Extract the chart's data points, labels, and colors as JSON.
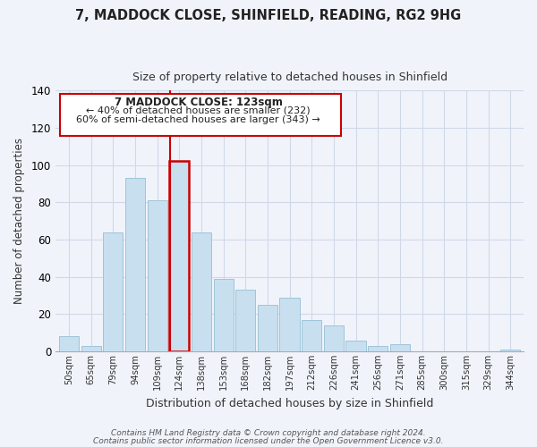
{
  "title": "7, MADDOCK CLOSE, SHINFIELD, READING, RG2 9HG",
  "subtitle": "Size of property relative to detached houses in Shinfield",
  "xlabel": "Distribution of detached houses by size in Shinfield",
  "ylabel": "Number of detached properties",
  "footnote1": "Contains HM Land Registry data © Crown copyright and database right 2024.",
  "footnote2": "Contains public sector information licensed under the Open Government Licence v3.0.",
  "bar_labels": [
    "50sqm",
    "65sqm",
    "79sqm",
    "94sqm",
    "109sqm",
    "124sqm",
    "138sqm",
    "153sqm",
    "168sqm",
    "182sqm",
    "197sqm",
    "212sqm",
    "226sqm",
    "241sqm",
    "256sqm",
    "271sqm",
    "285sqm",
    "300sqm",
    "315sqm",
    "329sqm",
    "344sqm"
  ],
  "bar_values": [
    8,
    3,
    64,
    93,
    81,
    102,
    64,
    39,
    33,
    25,
    29,
    17,
    14,
    6,
    3,
    4,
    0,
    0,
    0,
    0,
    1
  ],
  "bar_color": "#c8dff0",
  "bar_edge_color": "#a0c4d8",
  "highlight_bar_index": 5,
  "highlight_line_color": "#cc0000",
  "annotation_title": "7 MADDOCK CLOSE: 123sqm",
  "annotation_line1": "← 40% of detached houses are smaller (232)",
  "annotation_line2": "60% of semi-detached houses are larger (343) →",
  "annotation_box_color": "#ffffff",
  "annotation_box_edge": "#cc0000",
  "ylim": [
    0,
    140
  ],
  "yticks": [
    0,
    20,
    40,
    60,
    80,
    100,
    120,
    140
  ],
  "grid_color": "#d0d8e8",
  "background_color": "#f0f4fa"
}
